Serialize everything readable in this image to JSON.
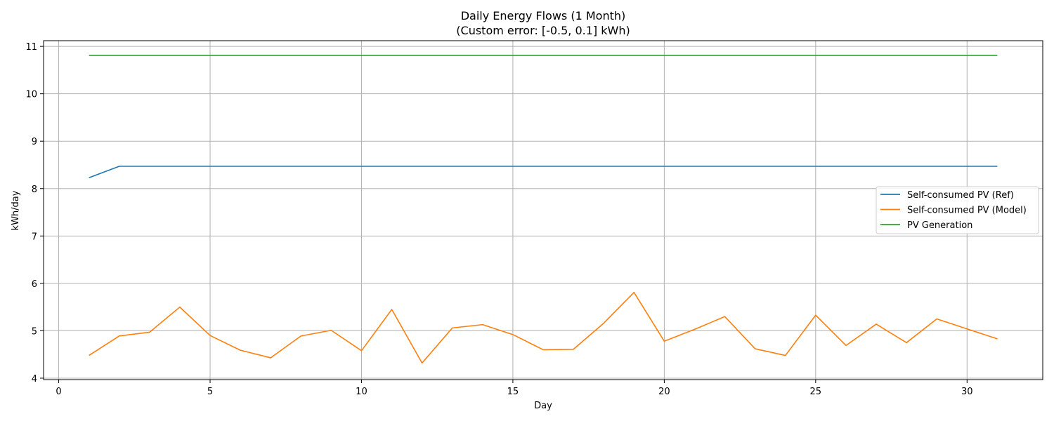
{
  "chart_data": {
    "type": "line",
    "title": "Daily Energy Flows (1 Month)",
    "subtitle": "(Custom error: [-0.5, 0.1] kWh)",
    "xlabel": "Day",
    "ylabel": "kWh/day",
    "xlim": [
      -0.5,
      32.5
    ],
    "ylim": [
      3.97,
      11.12
    ],
    "xticks": [
      0,
      5,
      10,
      15,
      20,
      25,
      30
    ],
    "yticks": [
      4,
      5,
      6,
      7,
      8,
      9,
      10,
      11
    ],
    "grid": true,
    "legend_position": "center-right",
    "x": [
      1,
      2,
      3,
      4,
      5,
      6,
      7,
      8,
      9,
      10,
      11,
      12,
      13,
      14,
      15,
      16,
      17,
      18,
      19,
      20,
      21,
      22,
      23,
      24,
      25,
      26,
      27,
      28,
      29,
      30,
      31
    ],
    "series": [
      {
        "name": "Self-consumed PV (Ref)",
        "color": "#1f77b4",
        "values": [
          8.23,
          8.47,
          8.47,
          8.47,
          8.47,
          8.47,
          8.47,
          8.47,
          8.47,
          8.47,
          8.47,
          8.47,
          8.47,
          8.47,
          8.47,
          8.47,
          8.47,
          8.47,
          8.47,
          8.47,
          8.47,
          8.47,
          8.47,
          8.47,
          8.47,
          8.47,
          8.47,
          8.47,
          8.47,
          8.47,
          8.47
        ]
      },
      {
        "name": "Self-consumed PV (Model)",
        "color": "#ff7f0e",
        "values": [
          4.48,
          4.89,
          4.97,
          5.5,
          4.9,
          4.59,
          4.43,
          4.89,
          5.01,
          4.58,
          5.45,
          4.32,
          5.06,
          5.13,
          4.92,
          4.6,
          4.61,
          5.16,
          5.81,
          4.78,
          5.03,
          5.3,
          4.62,
          4.48,
          5.33,
          4.69,
          5.14,
          4.75,
          5.25,
          5.04,
          4.83
        ]
      },
      {
        "name": "PV Generation",
        "color": "#2ca02c",
        "values": [
          10.81,
          10.81,
          10.81,
          10.81,
          10.81,
          10.81,
          10.81,
          10.81,
          10.81,
          10.81,
          10.81,
          10.81,
          10.81,
          10.81,
          10.81,
          10.81,
          10.81,
          10.81,
          10.81,
          10.81,
          10.81,
          10.81,
          10.81,
          10.81,
          10.81,
          10.81,
          10.81,
          10.81,
          10.81,
          10.81,
          10.81
        ]
      }
    ]
  }
}
